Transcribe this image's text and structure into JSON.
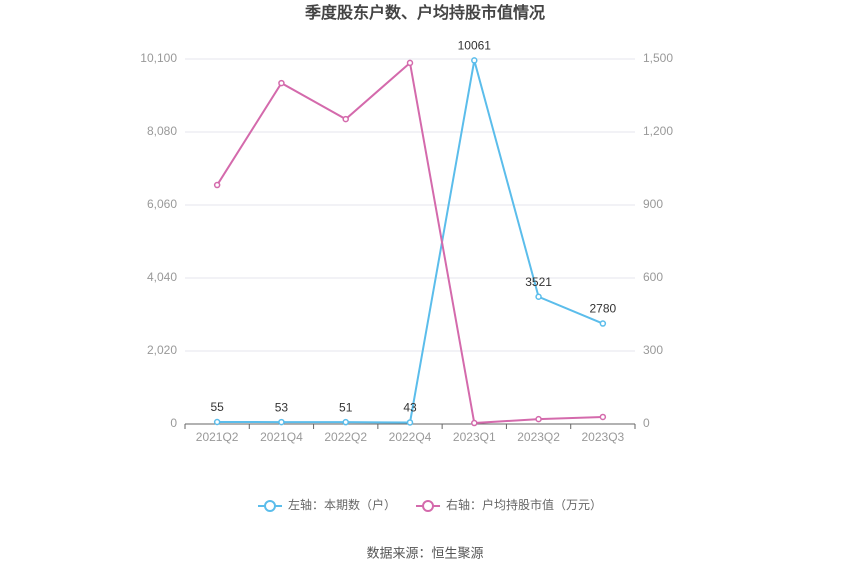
{
  "chart_data": {
    "type": "line",
    "title": "季度股东户数、户均持股市值情况",
    "categories": [
      "2021Q2",
      "2021Q4",
      "2022Q2",
      "2022Q4",
      "2023Q1",
      "2023Q2",
      "2023Q3"
    ],
    "series": [
      {
        "name": "左轴：本期数（户）",
        "color": "#5bbdeb",
        "values": [
          55,
          53,
          51,
          43,
          10061,
          3521,
          2780
        ],
        "axis": "y"
      },
      {
        "name": "右轴：户均持股市值（万元）",
        "color": "#d46aac",
        "values": [
          982,
          1401,
          1253,
          1484,
          4,
          20,
          29
        ],
        "axis": "y2"
      }
    ],
    "ylim": [
      0,
      10100
    ],
    "yticks": [
      0,
      {
        "value": 2020,
        "label": "2,020"
      },
      {
        "value": 4040,
        "label": "4,040"
      },
      {
        "value": 6060,
        "label": "6,060"
      },
      {
        "value": 8080,
        "label": "8,080"
      },
      {
        "value": 10100,
        "label": "10,100"
      }
    ],
    "y2lim": [
      0,
      1500
    ],
    "y2ticks": [
      0,
      300,
      600,
      900,
      {
        "value": 1200,
        "label": "1,200"
      },
      {
        "value": 1500,
        "label": "1,500"
      }
    ],
    "grid": true,
    "legend": "bottom",
    "source": "数据来源：恒生聚源"
  }
}
